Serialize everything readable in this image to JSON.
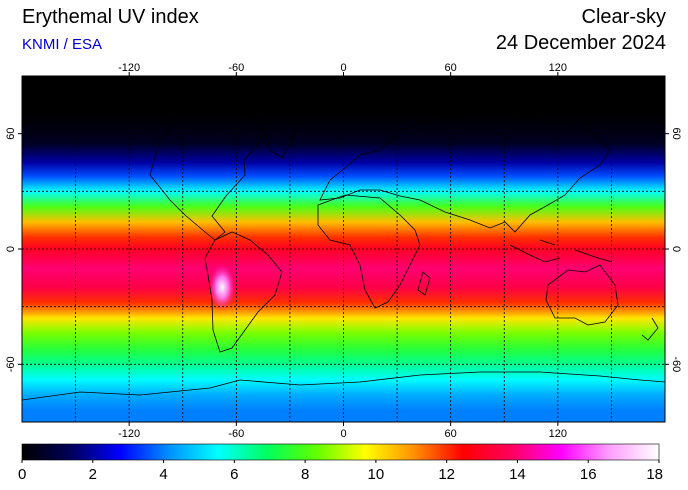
{
  "header": {
    "title": "Erythemal UV index",
    "source": "KNMI / ESA",
    "mode": "Clear-sky",
    "date": "24 December 2024"
  },
  "map": {
    "projection": "equirectangular",
    "lon_range": [
      -180,
      180
    ],
    "lat_range": [
      -90,
      90
    ],
    "lon_ticks": [
      -120,
      -60,
      0,
      60,
      120
    ],
    "lat_ticks": [
      -60,
      0,
      60
    ],
    "grid_lon_step": 30,
    "grid_lat_step": 30,
    "grid": true,
    "uv_profile": [
      {
        "lat": 90,
        "uv": 0
      },
      {
        "lat": 70,
        "uv": 0
      },
      {
        "lat": 55,
        "uv": 0.5
      },
      {
        "lat": 45,
        "uv": 2
      },
      {
        "lat": 38,
        "uv": 3.5
      },
      {
        "lat": 30,
        "uv": 5.5
      },
      {
        "lat": 22,
        "uv": 8
      },
      {
        "lat": 14,
        "uv": 10.5
      },
      {
        "lat": 6,
        "uv": 12
      },
      {
        "lat": 0,
        "uv": 13
      },
      {
        "lat": -10,
        "uv": 14
      },
      {
        "lat": -20,
        "uv": 13.5
      },
      {
        "lat": -28,
        "uv": 12
      },
      {
        "lat": -36,
        "uv": 10
      },
      {
        "lat": -44,
        "uv": 8.5
      },
      {
        "lat": -52,
        "uv": 7.5
      },
      {
        "lat": -60,
        "uv": 6.5
      },
      {
        "lat": -68,
        "uv": 5.5
      },
      {
        "lat": -76,
        "uv": 4.5
      },
      {
        "lat": -84,
        "uv": 4
      },
      {
        "lat": -90,
        "uv": 4
      }
    ],
    "hotspot": {
      "lon": -68,
      "lat": -20,
      "uv": 17.5
    }
  },
  "colorbar": {
    "min": 0,
    "max": 18,
    "ticks": [
      0,
      2,
      4,
      6,
      8,
      10,
      12,
      14,
      16,
      18
    ],
    "colors": [
      "#000000",
      "#00005a",
      "#0000ff",
      "#0090ff",
      "#00ffff",
      "#00ff60",
      "#60ff00",
      "#ffff00",
      "#ff9000",
      "#ff0000",
      "#ff0060",
      "#ff00ff",
      "#ffa0ff",
      "#ffffff"
    ]
  }
}
